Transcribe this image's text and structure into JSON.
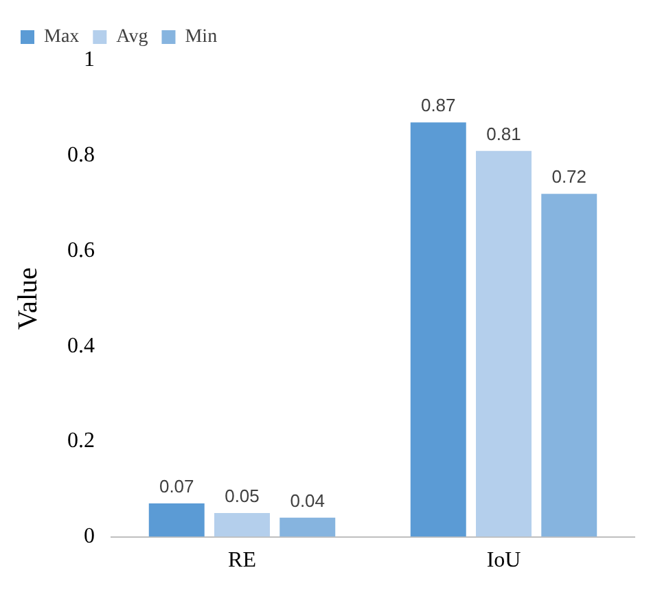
{
  "chart_data": {
    "type": "bar",
    "ylabel": "Value",
    "categories": [
      "RE",
      "IoU"
    ],
    "series": [
      {
        "name": "Max",
        "color": "#5b9bd5",
        "values": [
          0.07,
          0.87
        ]
      },
      {
        "name": "Avg",
        "color": "#b4cfec",
        "values": [
          0.05,
          0.81
        ]
      },
      {
        "name": "Min",
        "color": "#86b4df",
        "values": [
          0.04,
          0.72
        ]
      }
    ],
    "ylim": [
      0,
      1
    ],
    "yticks": [
      0,
      0.2,
      0.4,
      0.6,
      0.8,
      1
    ],
    "grid": false,
    "legend": "top left",
    "data_labels": true
  }
}
